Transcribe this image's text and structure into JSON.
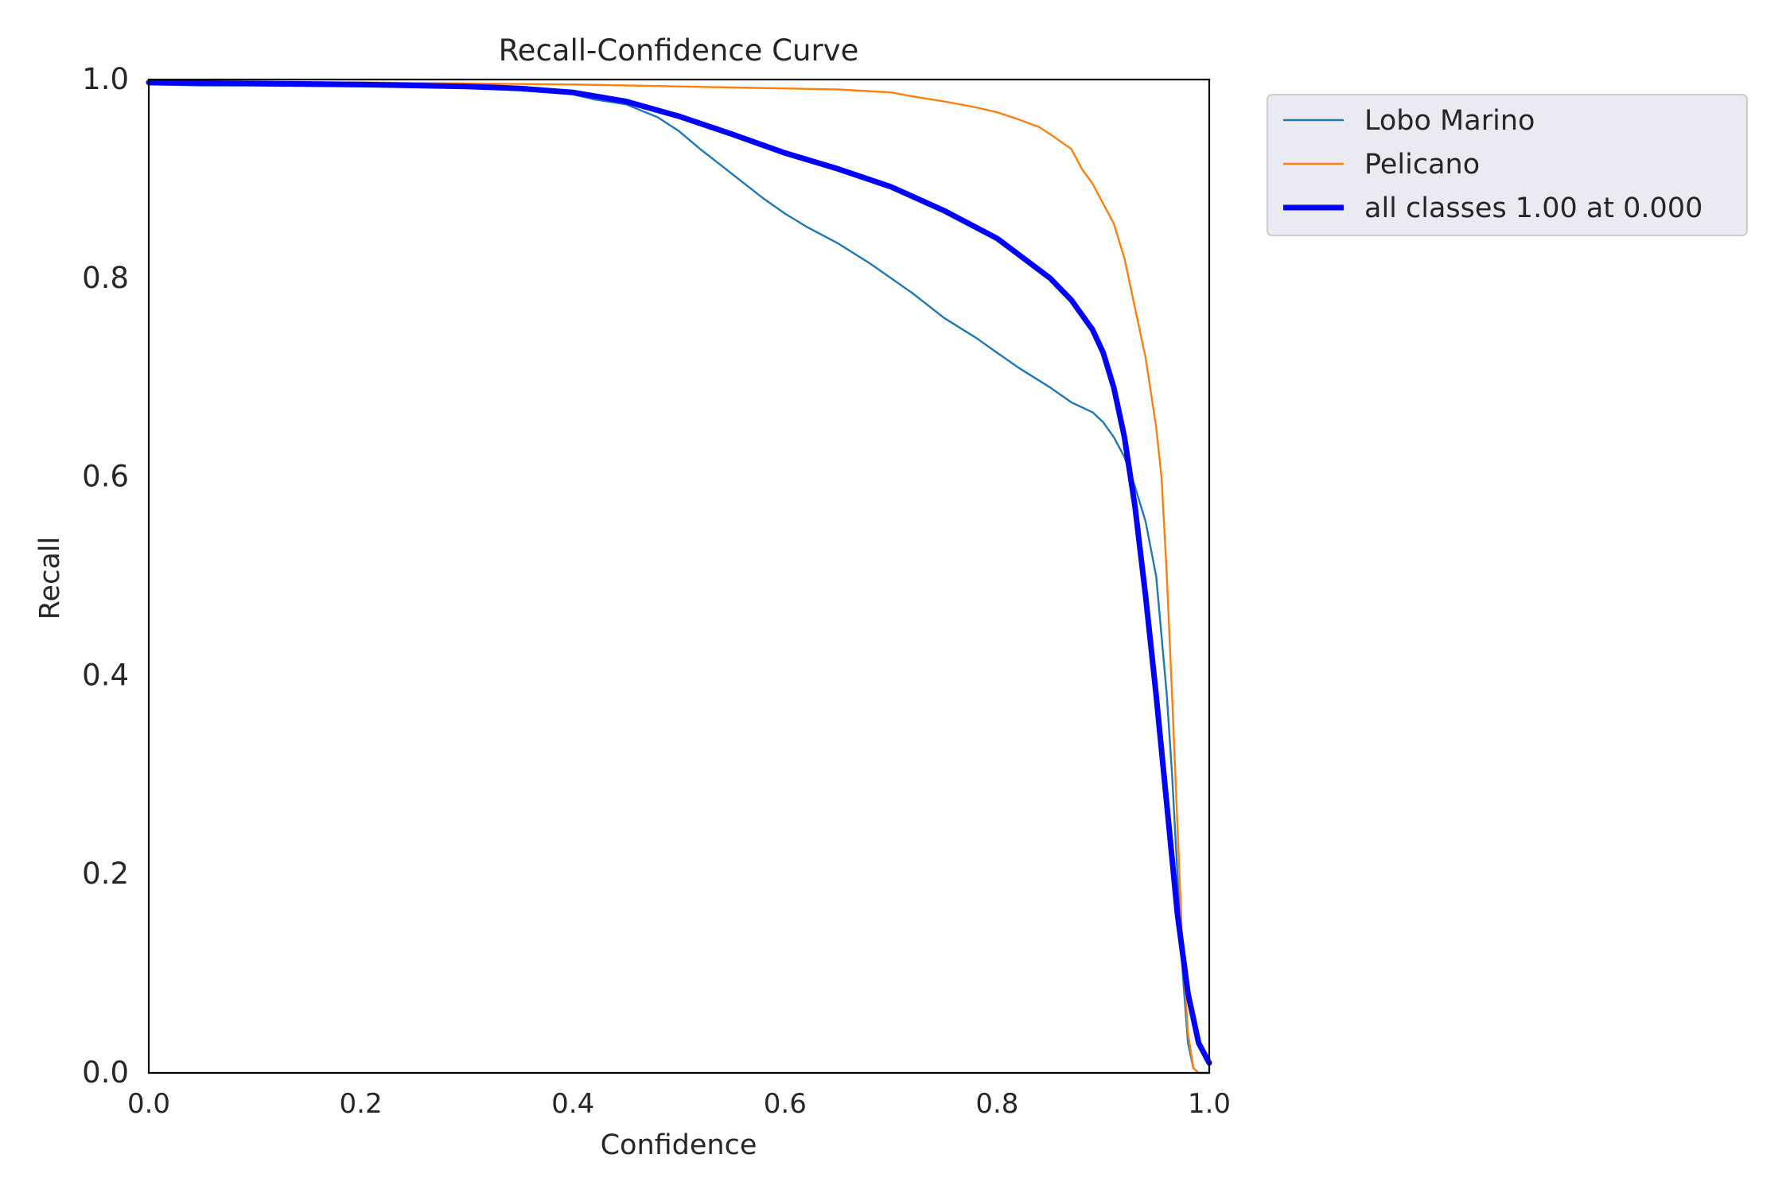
{
  "chart_data": {
    "type": "line",
    "title": "Recall-Confidence Curve",
    "xlabel": "Confidence",
    "ylabel": "Recall",
    "xlim": [
      0.0,
      1.0
    ],
    "ylim": [
      0.0,
      1.0
    ],
    "xticks": [
      "0.0",
      "0.2",
      "0.4",
      "0.6",
      "0.8",
      "1.0"
    ],
    "yticks": [
      "0.0",
      "0.2",
      "0.4",
      "0.6",
      "0.8",
      "1.0"
    ],
    "grid": false,
    "legend_position": "outside-top-right",
    "series": [
      {
        "name": "Lobo Marino",
        "color": "#1f77b4",
        "width": "thin",
        "x": [
          0.0,
          0.05,
          0.1,
          0.2,
          0.3,
          0.35,
          0.38,
          0.4,
          0.42,
          0.45,
          0.48,
          0.5,
          0.52,
          0.55,
          0.58,
          0.6,
          0.62,
          0.65,
          0.68,
          0.7,
          0.72,
          0.75,
          0.78,
          0.8,
          0.82,
          0.85,
          0.87,
          0.89,
          0.9,
          0.91,
          0.92,
          0.93,
          0.94,
          0.95,
          0.955,
          0.96,
          0.965,
          0.97,
          0.975,
          0.98,
          0.985,
          0.99,
          1.0
        ],
        "y": [
          0.995,
          0.994,
          0.994,
          0.993,
          0.992,
          0.99,
          0.988,
          0.985,
          0.98,
          0.975,
          0.962,
          0.948,
          0.93,
          0.905,
          0.88,
          0.865,
          0.852,
          0.835,
          0.815,
          0.8,
          0.785,
          0.76,
          0.74,
          0.725,
          0.71,
          0.69,
          0.675,
          0.665,
          0.655,
          0.64,
          0.62,
          0.59,
          0.555,
          0.5,
          0.44,
          0.38,
          0.3,
          0.2,
          0.1,
          0.03,
          0.005,
          0.0,
          0.0
        ]
      },
      {
        "name": "Pelicano",
        "color": "#ff7f0e",
        "width": "thin",
        "x": [
          0.0,
          0.1,
          0.2,
          0.3,
          0.4,
          0.5,
          0.55,
          0.6,
          0.65,
          0.7,
          0.72,
          0.75,
          0.78,
          0.8,
          0.82,
          0.84,
          0.85,
          0.87,
          0.88,
          0.89,
          0.9,
          0.91,
          0.92,
          0.93,
          0.94,
          0.95,
          0.955,
          0.96,
          0.965,
          0.97,
          0.975,
          0.98,
          0.985,
          0.99
        ],
        "y": [
          0.998,
          0.997,
          0.997,
          0.996,
          0.995,
          0.993,
          0.992,
          0.991,
          0.99,
          0.987,
          0.983,
          0.978,
          0.972,
          0.967,
          0.96,
          0.952,
          0.945,
          0.93,
          0.91,
          0.895,
          0.875,
          0.855,
          0.82,
          0.77,
          0.72,
          0.65,
          0.6,
          0.5,
          0.38,
          0.25,
          0.12,
          0.04,
          0.005,
          0.0
        ]
      },
      {
        "name": "all classes 1.00 at 0.000",
        "color": "#0000ff",
        "width": "thick",
        "x": [
          0.0,
          0.1,
          0.2,
          0.3,
          0.35,
          0.4,
          0.45,
          0.5,
          0.55,
          0.6,
          0.65,
          0.7,
          0.75,
          0.8,
          0.85,
          0.87,
          0.89,
          0.9,
          0.91,
          0.92,
          0.93,
          0.94,
          0.95,
          0.96,
          0.97,
          0.98,
          0.99,
          1.0
        ],
        "y": [
          0.997,
          0.996,
          0.995,
          0.993,
          0.991,
          0.987,
          0.978,
          0.963,
          0.945,
          0.926,
          0.91,
          0.892,
          0.868,
          0.84,
          0.8,
          0.778,
          0.748,
          0.725,
          0.69,
          0.64,
          0.57,
          0.48,
          0.38,
          0.27,
          0.16,
          0.08,
          0.03,
          0.01
        ]
      }
    ]
  }
}
